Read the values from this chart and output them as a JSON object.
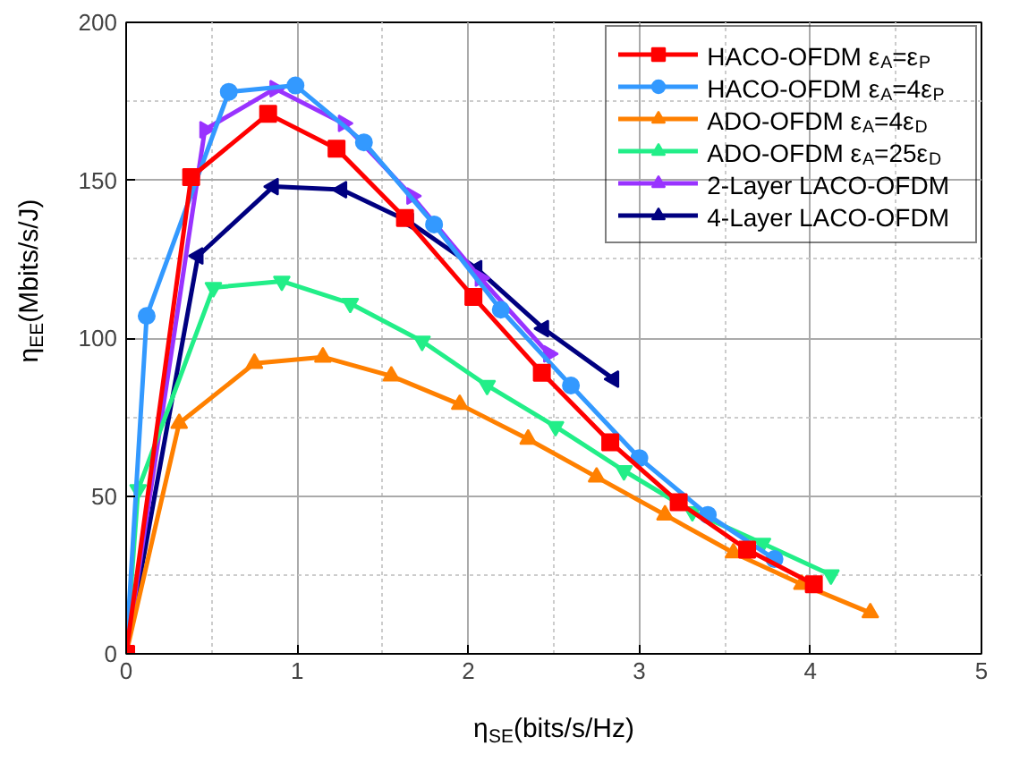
{
  "chart_data": {
    "type": "line",
    "xlabel": "η$_{SE}$(bits/s/Hz)",
    "ylabel": "η$_{EE}$(Mbits/s/J)",
    "xlim": [
      0,
      5
    ],
    "ylim": [
      0,
      200
    ],
    "xticks": [
      0,
      1,
      2,
      3,
      4,
      5
    ],
    "yticks": [
      0,
      50,
      100,
      150,
      200
    ],
    "grid": true,
    "legend": "top right",
    "line_style": "solid",
    "series": [
      {
        "name": "HACO-OFDM ε$_{A}$=ε$_{P}$",
        "color": "#ff0000",
        "marker": "square",
        "x": [
          0,
          0.38,
          0.83,
          1.23,
          1.63,
          2.03,
          2.43,
          2.83,
          3.23,
          3.63,
          4.02
        ],
        "values": [
          0,
          151,
          171,
          160,
          138,
          113,
          89,
          67,
          48,
          33,
          22
        ]
      },
      {
        "name": "HACO-OFDM ε$_{A}$=4ε$_{P}$",
        "color": "#3399ff",
        "marker": "circle",
        "x": [
          0,
          0.12,
          0.6,
          0.99,
          1.39,
          1.8,
          2.19,
          2.6,
          3.0,
          3.4,
          3.79
        ],
        "values": [
          0,
          107,
          178,
          180,
          162,
          136,
          109,
          85,
          62,
          44,
          30
        ]
      },
      {
        "name": "ADO-OFDM ε$_{A}$=4ε$_{D}$",
        "color": "#ff8000",
        "marker": "triangle",
        "x": [
          0,
          0.31,
          0.75,
          1.15,
          1.55,
          1.95,
          2.35,
          2.75,
          3.15,
          3.55,
          3.95,
          4.35
        ],
        "values": [
          0,
          73,
          92,
          94,
          88,
          79,
          68,
          56,
          44,
          32,
          22,
          13
        ]
      },
      {
        "name": "ADO-OFDM ε$_{A}$=25ε$_{D}$",
        "color": "#22ee88",
        "marker": "triangle",
        "x": [
          0,
          0.07,
          0.51,
          0.91,
          1.31,
          1.73,
          2.11,
          2.51,
          2.91,
          3.31,
          3.72,
          4.12
        ],
        "values": [
          0,
          52,
          116,
          118,
          111,
          99,
          85,
          72,
          58,
          45,
          35,
          25
        ]
      },
      {
        "name": "2-Layer LACO-OFDM",
        "color": "#9933ff",
        "marker": "triangle",
        "x": [
          0,
          0.46,
          0.87,
          1.27,
          1.67,
          2.07,
          2.47
        ],
        "values": [
          0,
          166,
          179,
          168,
          145,
          119,
          95
        ]
      },
      {
        "name": "4-Layer LACO-OFDM",
        "color": "#000080",
        "marker": "triangle",
        "x": [
          0,
          0.42,
          0.86,
          1.26,
          1.65,
          2.05,
          2.44,
          2.85
        ],
        "values": [
          0,
          126,
          148,
          147,
          137,
          122,
          103,
          87
        ]
      }
    ]
  }
}
